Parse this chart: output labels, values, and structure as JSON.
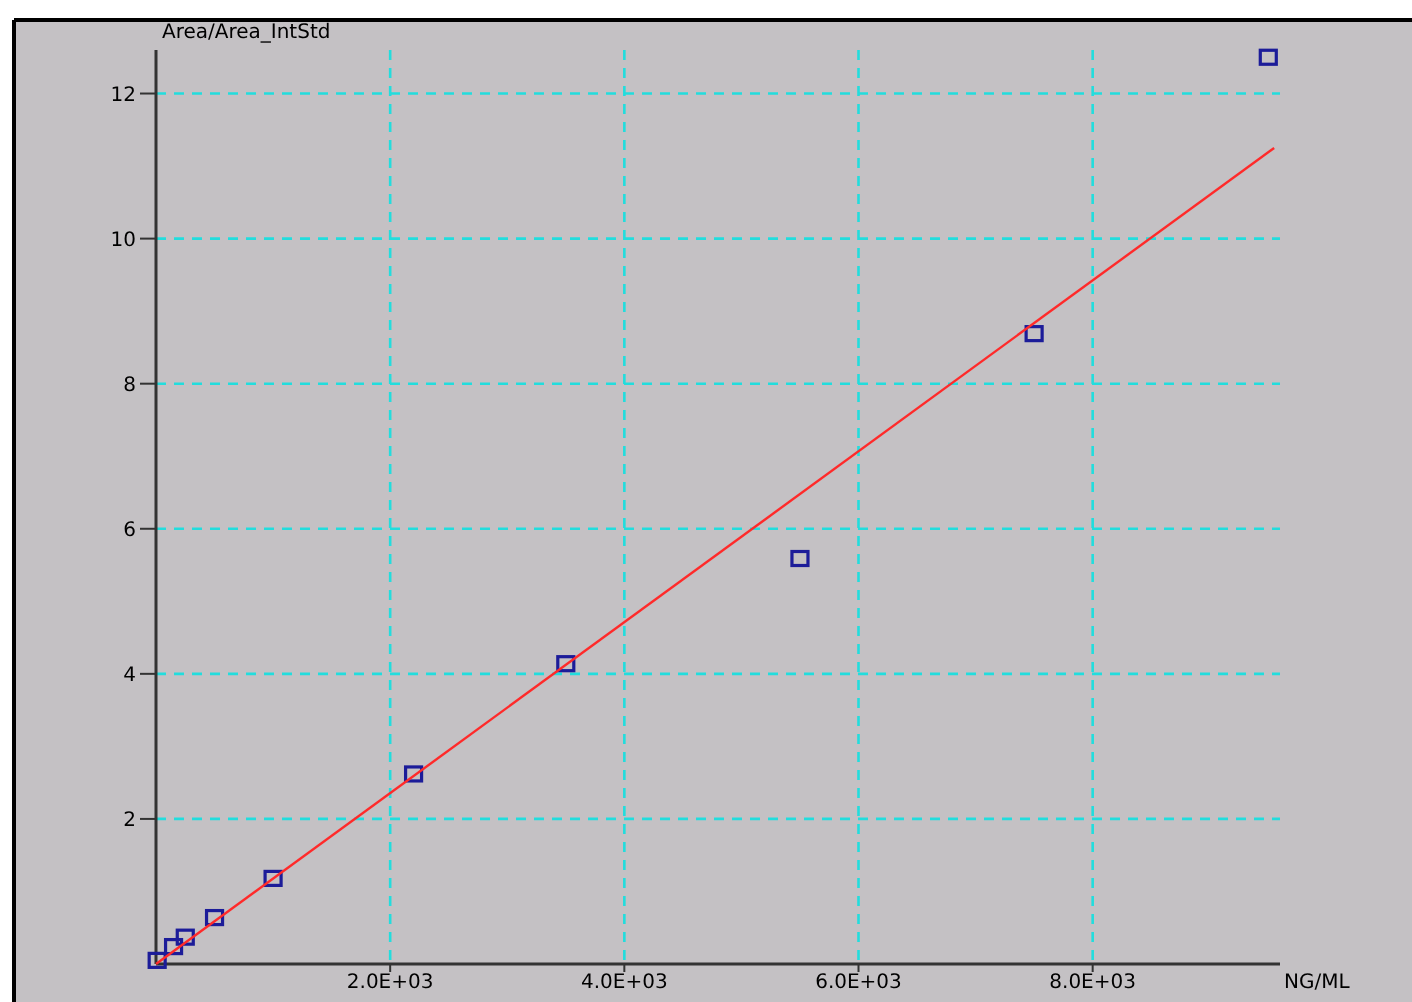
{
  "chart_data": {
    "type": "scatter",
    "xlabel": "NG/ML",
    "ylabel": "Area/Area_IntStd",
    "xlim": [
      0,
      9600
    ],
    "ylim": [
      0,
      12.6
    ],
    "xticks": [
      {
        "value": 2000,
        "label": "2.0E+03"
      },
      {
        "value": 4000,
        "label": "4.0E+03"
      },
      {
        "value": 6000,
        "label": "6.0E+03"
      },
      {
        "value": 8000,
        "label": "8.0E+03"
      }
    ],
    "yticks": [
      2,
      4,
      6,
      8,
      10,
      12
    ],
    "grid": true,
    "marker": "square",
    "series": [
      {
        "color": "#1c1c99",
        "x": [
          10,
          150,
          250,
          500,
          1000,
          2200,
          3500,
          5500,
          7500,
          9500
        ],
        "values": [
          0.05,
          0.24,
          0.37,
          0.64,
          1.18,
          2.62,
          4.14,
          5.59,
          8.69,
          12.5
        ]
      },
      {
        "type": "line",
        "color": "#ff2a2a",
        "x": [
          0,
          9550
        ],
        "values": [
          0.0,
          11.25
        ],
        "marker": "none"
      }
    ]
  }
}
